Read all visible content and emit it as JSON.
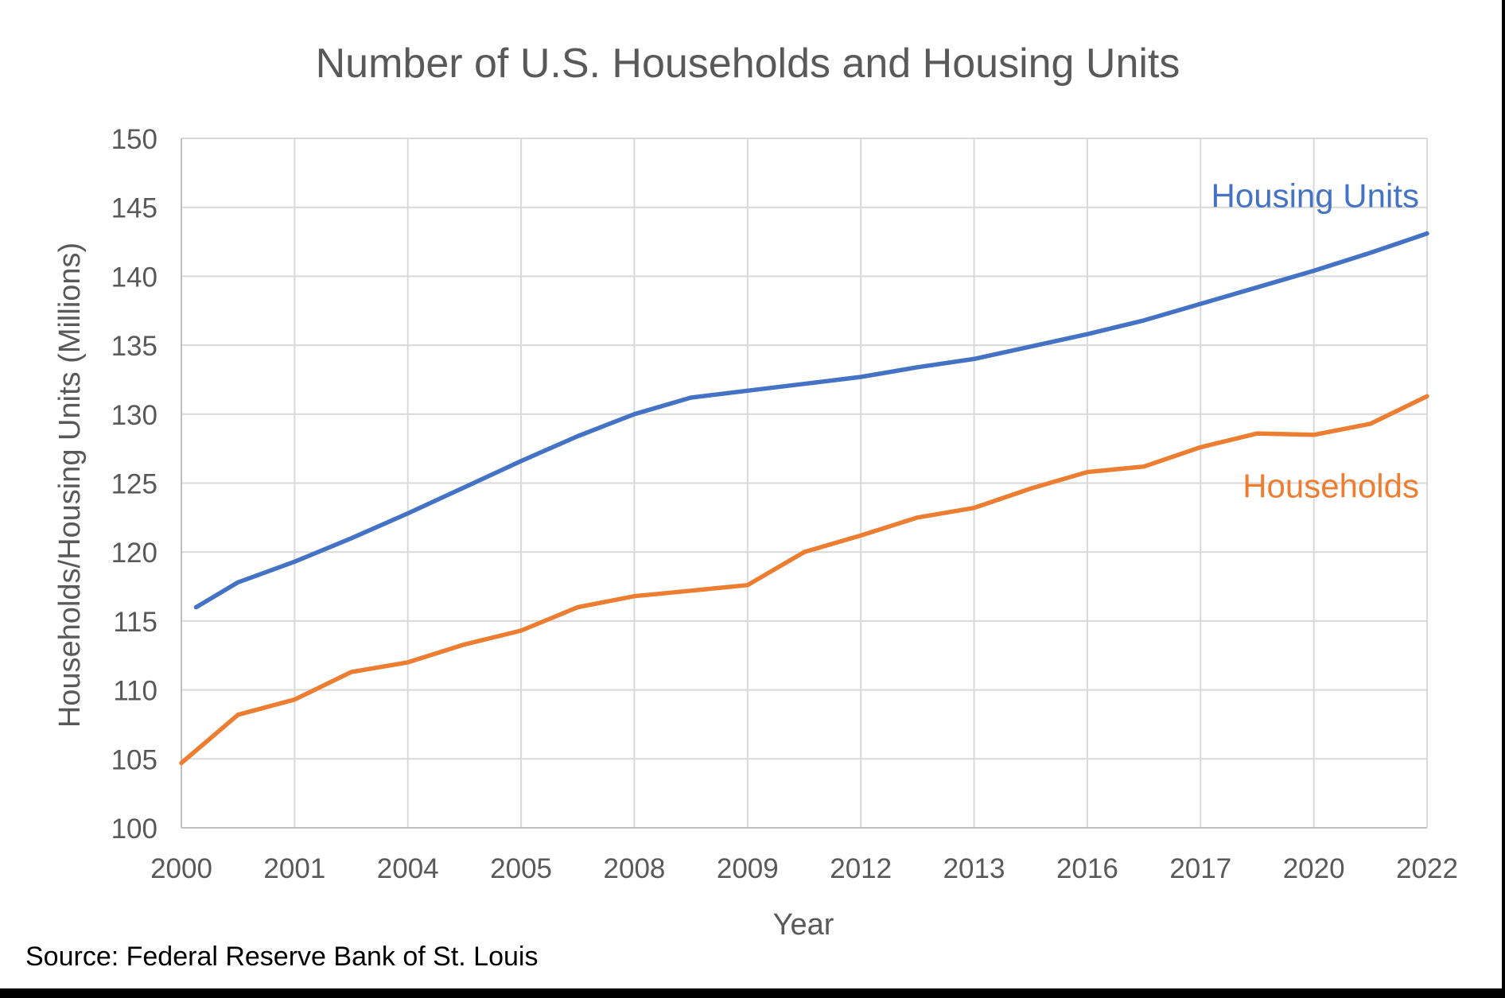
{
  "chart_data": {
    "type": "line",
    "title": "Number of U.S. Households and Housing Units",
    "xlabel": "Year",
    "ylabel": "Households/Housing Units (Millions)",
    "source": "Source: Federal Reserve Bank of St. Louis",
    "ylim": [
      100,
      150
    ],
    "y_ticks": [
      "100",
      "105",
      "110",
      "115",
      "120",
      "125",
      "130",
      "135",
      "140",
      "145",
      "150"
    ],
    "x_tick_labels": [
      "2000",
      "2001",
      "2004",
      "2005",
      "2008",
      "2009",
      "2012",
      "2013",
      "2016",
      "2017",
      "2020",
      "2022"
    ],
    "grid": true,
    "legend": "inline-labels",
    "series": [
      {
        "name": "Housing Units",
        "color": "#4472C4",
        "points": [
          [
            0.13,
            116.0
          ],
          [
            0.5,
            117.8
          ],
          [
            1.0,
            119.3
          ],
          [
            1.5,
            121.0
          ],
          [
            2.0,
            122.8
          ],
          [
            2.5,
            124.7
          ],
          [
            3.0,
            126.6
          ],
          [
            3.5,
            128.4
          ],
          [
            4.0,
            130.0
          ],
          [
            4.5,
            131.2
          ],
          [
            5.0,
            131.7
          ],
          [
            5.5,
            132.2
          ],
          [
            6.0,
            132.7
          ],
          [
            6.5,
            133.4
          ],
          [
            7.0,
            134.0
          ],
          [
            7.5,
            134.9
          ],
          [
            8.0,
            135.8
          ],
          [
            8.5,
            136.8
          ],
          [
            9.0,
            138.0
          ],
          [
            9.5,
            139.2
          ],
          [
            10.0,
            140.4
          ],
          [
            10.5,
            141.7
          ],
          [
            11.0,
            143.1
          ]
        ]
      },
      {
        "name": "Households",
        "color": "#ED7D31",
        "points": [
          [
            0.0,
            104.7
          ],
          [
            0.5,
            108.2
          ],
          [
            1.0,
            109.3
          ],
          [
            1.5,
            111.3
          ],
          [
            2.0,
            112.0
          ],
          [
            2.5,
            113.3
          ],
          [
            3.0,
            114.3
          ],
          [
            3.5,
            116.0
          ],
          [
            4.0,
            116.8
          ],
          [
            4.5,
            117.2
          ],
          [
            5.0,
            117.6
          ],
          [
            5.5,
            120.0
          ],
          [
            6.0,
            121.2
          ],
          [
            6.5,
            122.5
          ],
          [
            7.0,
            123.2
          ],
          [
            7.5,
            124.6
          ],
          [
            8.0,
            125.8
          ],
          [
            8.5,
            126.2
          ],
          [
            9.0,
            127.6
          ],
          [
            9.5,
            128.6
          ],
          [
            10.0,
            128.5
          ],
          [
            10.5,
            129.3
          ],
          [
            11.0,
            131.3
          ]
        ]
      }
    ]
  }
}
